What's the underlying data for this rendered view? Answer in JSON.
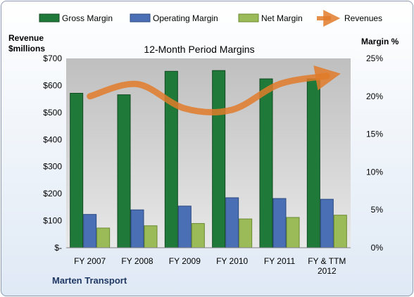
{
  "chart_data": {
    "type": "bar",
    "title": "12-Month Period Margins",
    "left_axis_title": [
      "Revenue",
      "$millions"
    ],
    "right_axis_title": "Margin %",
    "footer_label": "Marten Transport",
    "categories": [
      [
        "FY 2007"
      ],
      [
        "FY 2008"
      ],
      [
        "FY 2009"
      ],
      [
        "FY 2010"
      ],
      [
        "FY 2011"
      ],
      [
        "FY & TTM",
        "2012"
      ]
    ],
    "y_left_ticks": [
      "$-",
      "$100",
      "$200",
      "$300",
      "$400",
      "$500",
      "$600",
      "$700"
    ],
    "y_left_range": [
      0,
      700
    ],
    "y_right_ticks": [
      "0%",
      "5%",
      "10%",
      "15%",
      "20%",
      "25%"
    ],
    "y_right_range": [
      0,
      25
    ],
    "grid": false,
    "legend_position": "top",
    "series": [
      {
        "name": "Gross Margin",
        "axis": "right",
        "color": "#1f7a3a",
        "values": [
          20.4,
          20.2,
          23.3,
          23.4,
          22.3,
          22.3
        ]
      },
      {
        "name": "Operating Margin",
        "axis": "right",
        "color": "#4a6fb5",
        "values": [
          4.4,
          5.0,
          5.5,
          6.6,
          6.5,
          6.4
        ]
      },
      {
        "name": "Net Margin",
        "axis": "right",
        "color": "#9bbb59",
        "values": [
          2.6,
          2.9,
          3.2,
          3.8,
          4.0,
          4.3
        ]
      }
    ],
    "line_series": {
      "name": "Revenues",
      "axis": "left",
      "color": "#e07b2a",
      "values": [
        560,
        605,
        515,
        510,
        605,
        635
      ]
    }
  }
}
